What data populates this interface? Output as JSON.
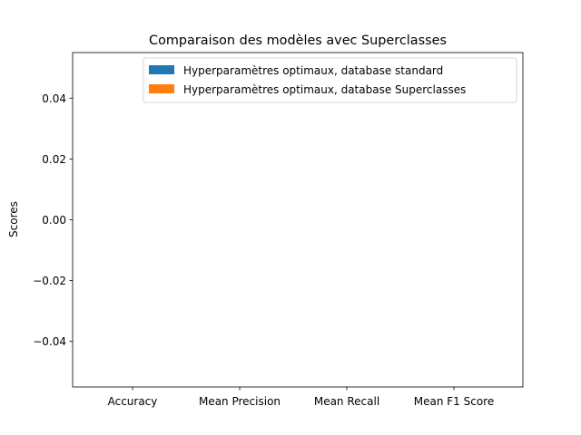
{
  "chart_data": {
    "type": "bar",
    "title": "Comparaison des modèles avec Superclasses",
    "xlabel": "",
    "ylabel": "Scores",
    "categories": [
      "Accuracy",
      "Mean Precision",
      "Mean Recall",
      "Mean F1 Score"
    ],
    "series": [
      {
        "name": "Hyperparamètres optimaux, database standard",
        "color": "#1f77b4",
        "values": [
          0,
          0,
          0,
          0
        ]
      },
      {
        "name": "Hyperparamètres optimaux, database Superclasses",
        "color": "#ff7f0e",
        "values": [
          0,
          0,
          0,
          0
        ]
      }
    ],
    "ylim": [
      -0.055,
      0.055
    ],
    "yticks": [
      -0.04,
      -0.02,
      0.0,
      0.02,
      0.04
    ],
    "ytick_labels": [
      "−0.04",
      "−0.02",
      "0.00",
      "0.02",
      "0.04"
    ],
    "grid": false,
    "legend_position": "top-right"
  }
}
